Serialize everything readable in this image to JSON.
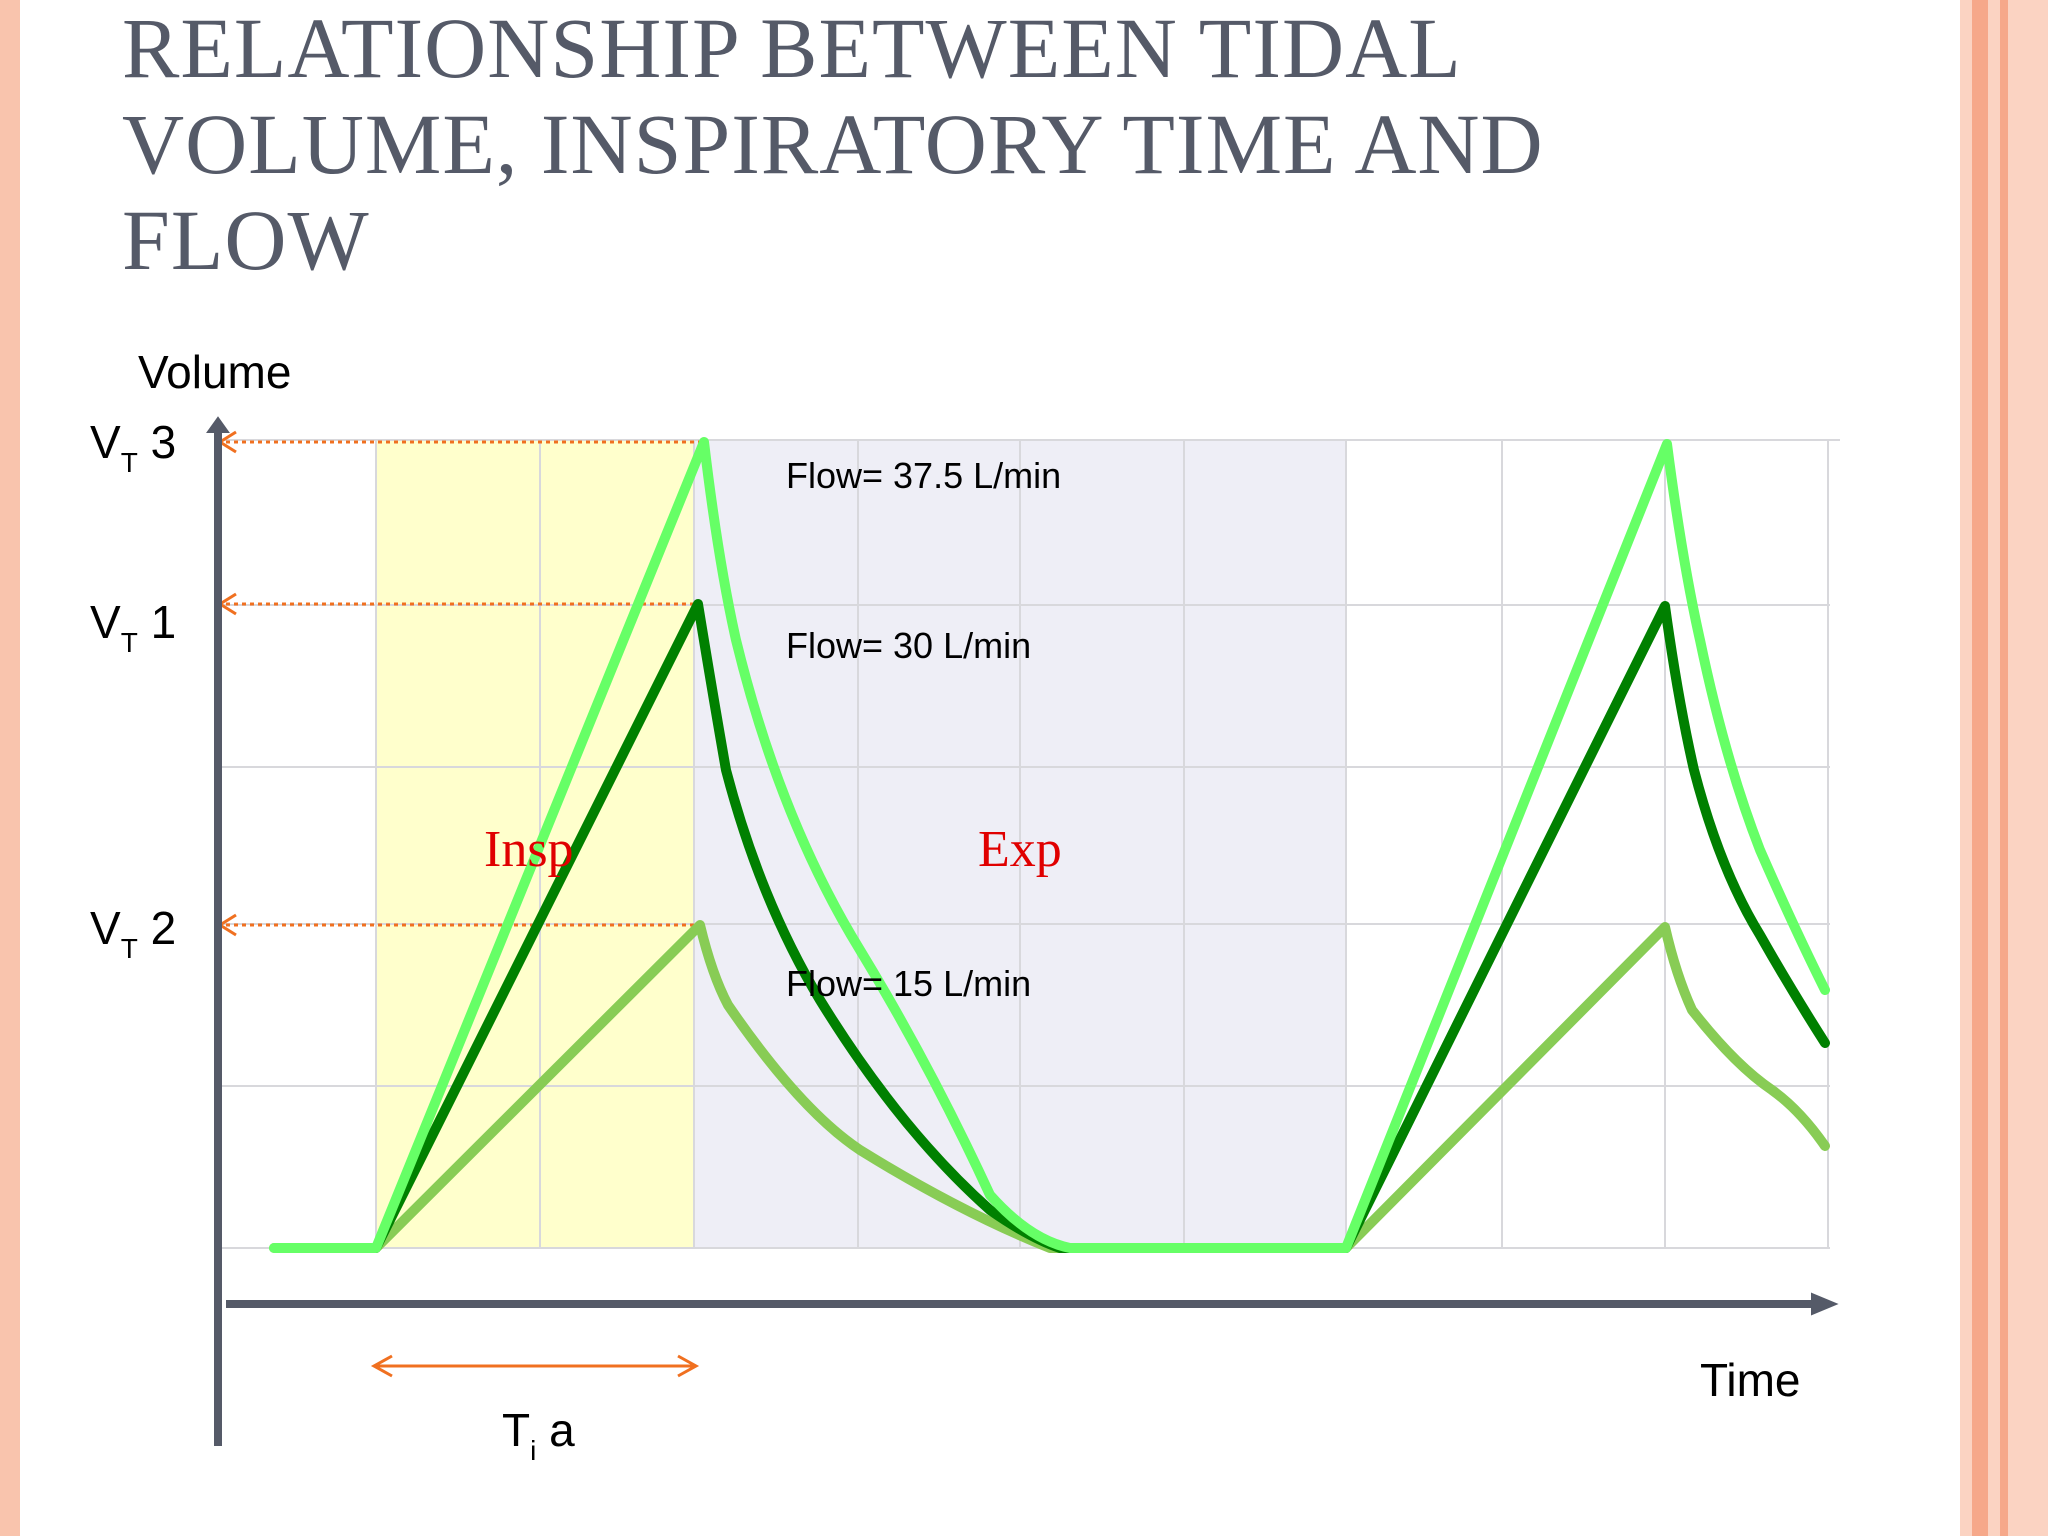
{
  "title_lines": [
    "RELATIONSHIP BETWEEN TIDAL",
    "VOLUME, INSPIRATORY TIME AND",
    "FLOW"
  ],
  "axes": {
    "y_label": "Volume",
    "x_label": "Time"
  },
  "volume_markers": [
    {
      "main": "V",
      "sub": "T",
      "suffix": " 3"
    },
    {
      "main": "V",
      "sub": "T",
      "suffix": " 1"
    },
    {
      "main": "V",
      "sub": "T",
      "suffix": " 2"
    }
  ],
  "flow_labels": {
    "high": "Flow= 37.5 L/min",
    "mid": "Flow= 30 L/min",
    "low": "Flow= 15 L/min"
  },
  "phases": {
    "insp": "Insp",
    "exp": "Exp"
  },
  "inspiratory_time": {
    "main": "T",
    "sub": "i",
    "suffix": " a"
  },
  "colors": {
    "flow_high": "#66ff66",
    "flow_mid": "#008000",
    "flow_low": "#88cc55",
    "insp_band": "#ffffcc",
    "exp_band": "#eeeef6",
    "arrow": "#f07020",
    "axis": "#555a68",
    "phase_text": "#e00000",
    "left_strip": "#f8c0a8",
    "right_strip": "#f8c0a8"
  }
}
